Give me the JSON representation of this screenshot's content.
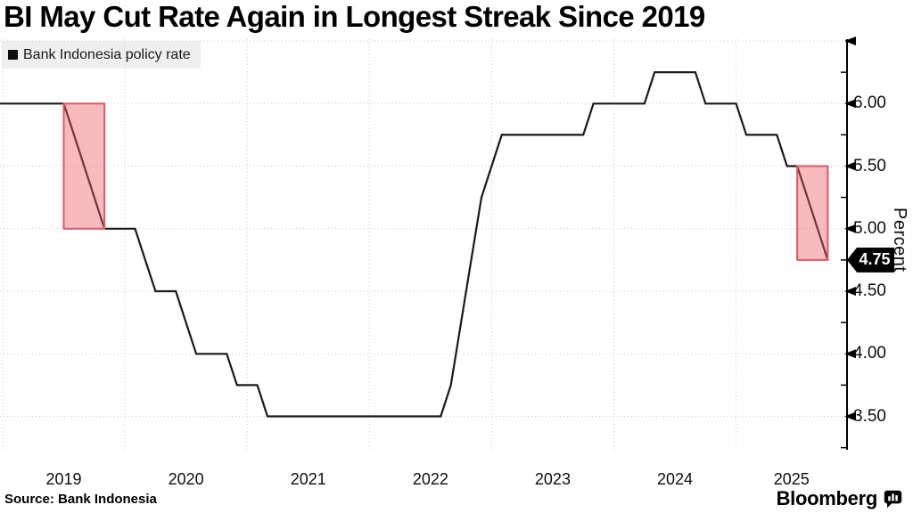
{
  "header": {
    "title": "BI May Cut Rate Again in Longest Streak Since 2019"
  },
  "legend": {
    "label": "Bank Indonesia policy rate",
    "swatch_color": "#111111"
  },
  "yaxis": {
    "title": "Percent",
    "major_tick_labels": [
      "6.00",
      "5.50",
      "5.00",
      "4.50",
      "4.00",
      "3.50"
    ]
  },
  "badge": {
    "value": "4.75"
  },
  "footer": {
    "source": "Source: Bank Indonesia",
    "brand": "Bloomberg"
  },
  "colors": {
    "background": "#ffffff",
    "line": "#1a1a1a",
    "grid": "#cbcbcb",
    "axis": "#000000",
    "highlight_fill": "rgba(237,90,103,0.42)",
    "highlight_stroke": "#dd5a66",
    "badge_bg": "#000000",
    "badge_text": "#ffffff",
    "legend_bg": "#efefef"
  },
  "chart_data": {
    "type": "line",
    "title": "BI May Cut Rate Again in Longest Streak Since 2019",
    "series_name": "Bank Indonesia policy rate",
    "unit": "percent",
    "ylabel": "Percent",
    "ylim": [
      3.25,
      6.5
    ],
    "grid": true,
    "legend_position": "top-left",
    "y_major_ticks": [
      6.0,
      5.5,
      5.0,
      4.5,
      4.0,
      3.5
    ],
    "y_minor_ticks": [
      6.25,
      5.75,
      5.25,
      4.75,
      4.25,
      3.75,
      3.25
    ],
    "x_years": [
      "2019",
      "2020",
      "2021",
      "2022",
      "2023",
      "2024",
      "2025"
    ],
    "frequency": "monthly",
    "start_month": "2019-01",
    "end_month": "2025-09",
    "values": [
      6.0,
      6.0,
      6.0,
      6.0,
      6.0,
      6.0,
      5.75,
      5.5,
      5.25,
      5.0,
      5.0,
      5.0,
      5.0,
      4.75,
      4.5,
      4.5,
      4.5,
      4.25,
      4.0,
      4.0,
      4.0,
      4.0,
      3.75,
      3.75,
      3.75,
      3.5,
      3.5,
      3.5,
      3.5,
      3.5,
      3.5,
      3.5,
      3.5,
      3.5,
      3.5,
      3.5,
      3.5,
      3.5,
      3.5,
      3.5,
      3.5,
      3.5,
      3.5,
      3.75,
      4.25,
      4.75,
      5.25,
      5.5,
      5.75,
      5.75,
      5.75,
      5.75,
      5.75,
      5.75,
      5.75,
      5.75,
      5.75,
      6.0,
      6.0,
      6.0,
      6.0,
      6.0,
      6.0,
      6.25,
      6.25,
      6.25,
      6.25,
      6.25,
      6.0,
      6.0,
      6.0,
      6.0,
      5.75,
      5.75,
      5.75,
      5.75,
      5.5,
      5.5,
      5.25,
      5.0,
      4.75
    ],
    "last_value": 4.75,
    "highlights": [
      {
        "name": "2019 easing streak",
        "start_month_index": 5,
        "end_month_index": 9,
        "top_value": 6.0,
        "bottom_value": 5.0
      },
      {
        "name": "2025 easing streak",
        "start_month_index": 77,
        "end_month_index": 80,
        "top_value": 5.5,
        "bottom_value": 4.75
      }
    ]
  }
}
